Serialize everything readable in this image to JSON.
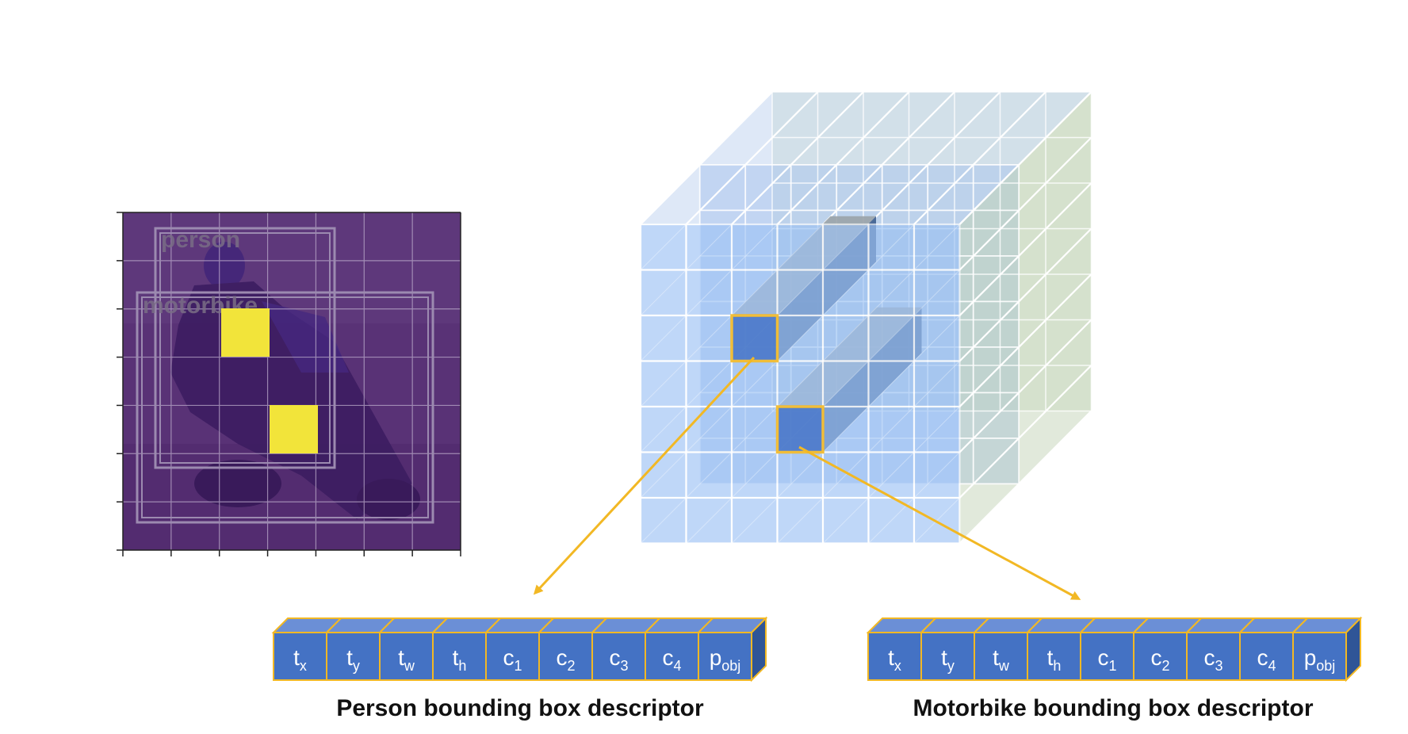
{
  "image_panel": {
    "labels": [
      {
        "name": "person-label",
        "text": "person"
      },
      {
        "name": "motorbike-label",
        "text": "motorbike"
      }
    ],
    "colors": {
      "overlay": "#4a1f6b",
      "highlight": "#f2e43a",
      "grid": "#b9a8c9"
    }
  },
  "grid_tensor": {
    "colors": {
      "front": "#9ec3f5",
      "top": "#c3d6f0",
      "back": "#c6d9b8",
      "highlight_border": "#f2b824",
      "highlight_fill": "#4a78c9"
    }
  },
  "descriptors": [
    {
      "id": "person",
      "caption": "Person bounding box descriptor",
      "cells": [
        {
          "main": "t",
          "sub": "x"
        },
        {
          "main": "t",
          "sub": "y"
        },
        {
          "main": "t",
          "sub": "w"
        },
        {
          "main": "t",
          "sub": "h"
        },
        {
          "main": "c",
          "sub": "1"
        },
        {
          "main": "c",
          "sub": "2"
        },
        {
          "main": "c",
          "sub": "3"
        },
        {
          "main": "c",
          "sub": "4"
        },
        {
          "main": "p",
          "sub": "obj"
        }
      ]
    },
    {
      "id": "motorbike",
      "caption": "Motorbike bounding box descriptor",
      "cells": [
        {
          "main": "t",
          "sub": "x"
        },
        {
          "main": "t",
          "sub": "y"
        },
        {
          "main": "t",
          "sub": "w"
        },
        {
          "main": "t",
          "sub": "h"
        },
        {
          "main": "c",
          "sub": "1"
        },
        {
          "main": "c",
          "sub": "2"
        },
        {
          "main": "c",
          "sub": "3"
        },
        {
          "main": "c",
          "sub": "4"
        },
        {
          "main": "p",
          "sub": "obj"
        }
      ]
    }
  ],
  "colors": {
    "cell_front": "#4472c4",
    "cell_top": "#6b8fd6",
    "cell_side": "#2f5597",
    "cell_border": "#f2b824",
    "arrow": "#f2b824"
  }
}
